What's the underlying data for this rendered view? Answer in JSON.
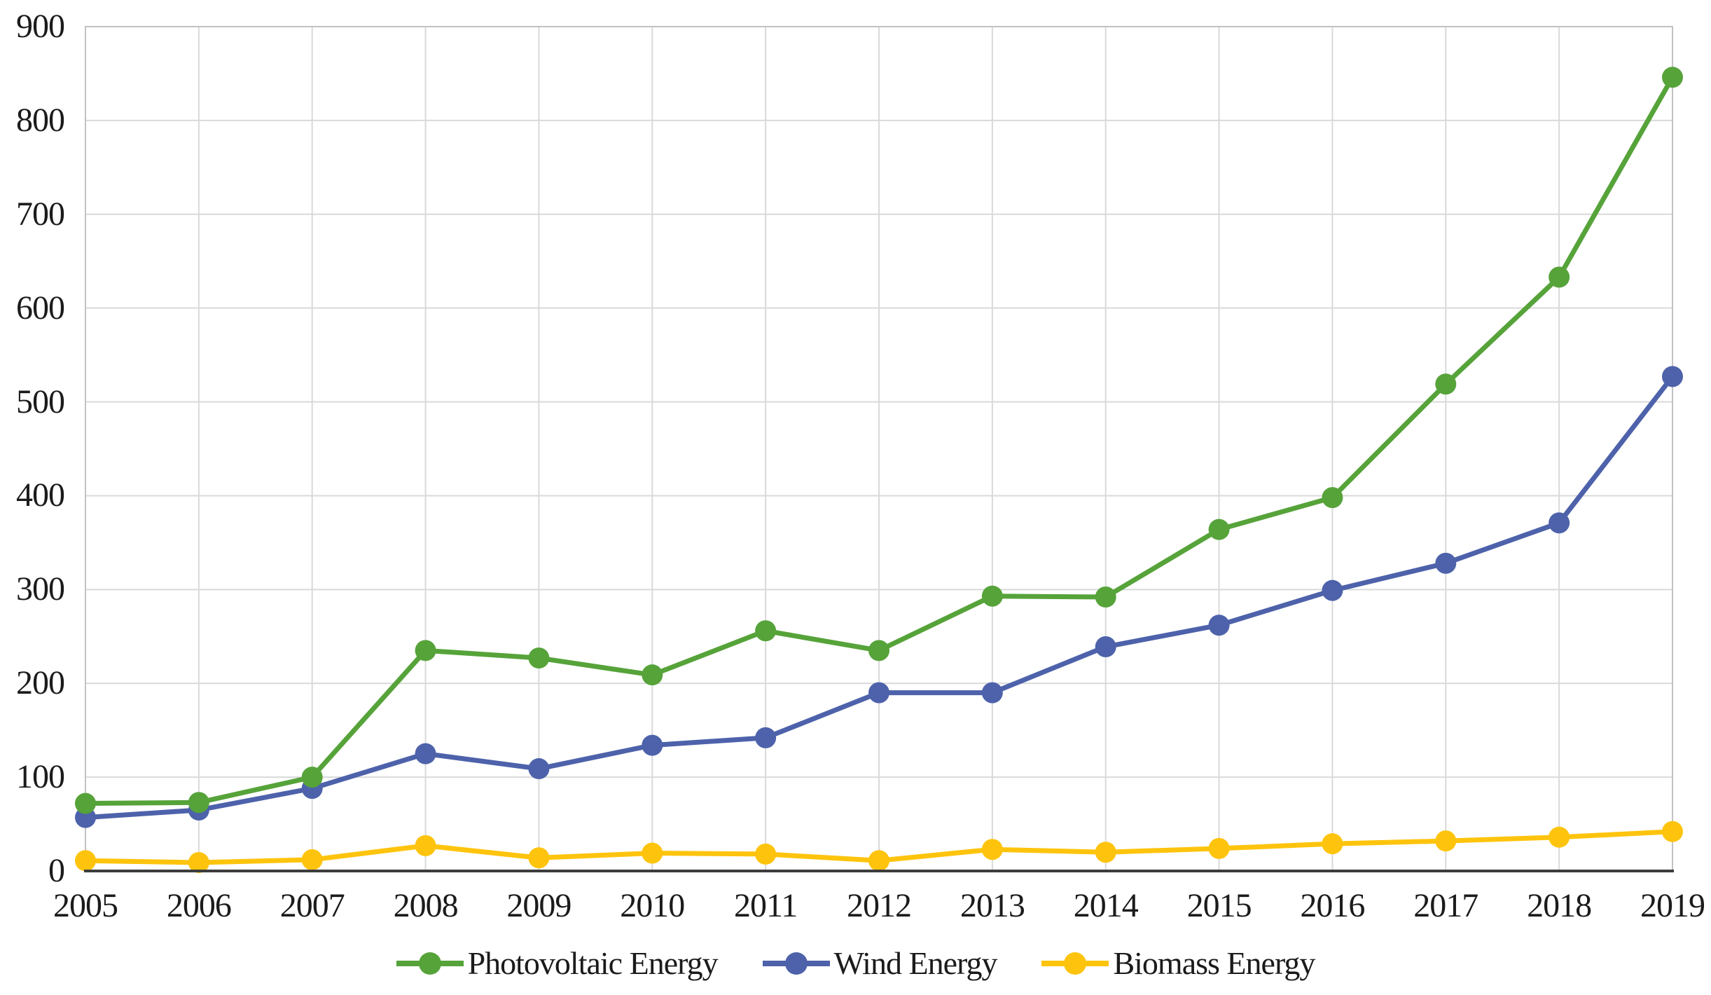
{
  "chart_data": {
    "type": "line",
    "title": "",
    "xlabel": "",
    "ylabel": "",
    "x": [
      2005,
      2006,
      2007,
      2008,
      2009,
      2010,
      2011,
      2012,
      2013,
      2014,
      2015,
      2016,
      2017,
      2018,
      2019
    ],
    "ylim": [
      0,
      900
    ],
    "yticks": [
      0,
      100,
      200,
      300,
      400,
      500,
      600,
      700,
      800,
      900
    ],
    "grid": true,
    "legend_position": "bottom-center",
    "series": [
      {
        "name": "Photovoltaic Energy",
        "color": "#56a33a",
        "values": [
          72,
          73,
          100,
          235,
          227,
          209,
          256,
          235,
          293,
          292,
          364,
          398,
          519,
          633,
          846
        ]
      },
      {
        "name": "Wind Energy",
        "color": "#4d62aa",
        "values": [
          57,
          65,
          88,
          125,
          109,
          134,
          142,
          190,
          190,
          239,
          262,
          299,
          328,
          371,
          527
        ]
      },
      {
        "name": "Biomass Energy",
        "color": "#fec40d",
        "values": [
          11,
          9,
          12,
          27,
          14,
          19,
          18,
          11,
          23,
          20,
          24,
          29,
          32,
          36,
          42
        ]
      }
    ]
  },
  "colors": {
    "background": "#ffffff",
    "gridline": "#d9d9d9",
    "plot_border": "#c2c2c2",
    "axis_line": "#3d3d3d",
    "text": "#1b1b1b"
  }
}
